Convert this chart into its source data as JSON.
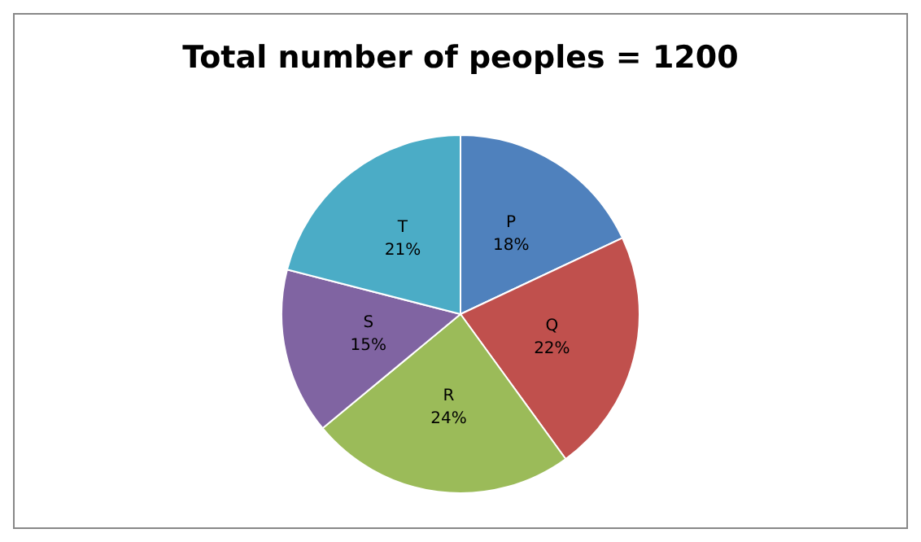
{
  "chart_data": {
    "type": "pie",
    "title": "Total number of peoples = 1200",
    "categories": [
      "P",
      "Q",
      "R",
      "S",
      "T"
    ],
    "values": [
      18,
      22,
      24,
      15,
      21
    ],
    "value_labels": [
      "18%",
      "22%",
      "24%",
      "15%",
      "21%"
    ],
    "colors": [
      "#4f81bd",
      "#c0504d",
      "#9bbb59",
      "#8064a2",
      "#4bacc6"
    ],
    "legend": false
  }
}
